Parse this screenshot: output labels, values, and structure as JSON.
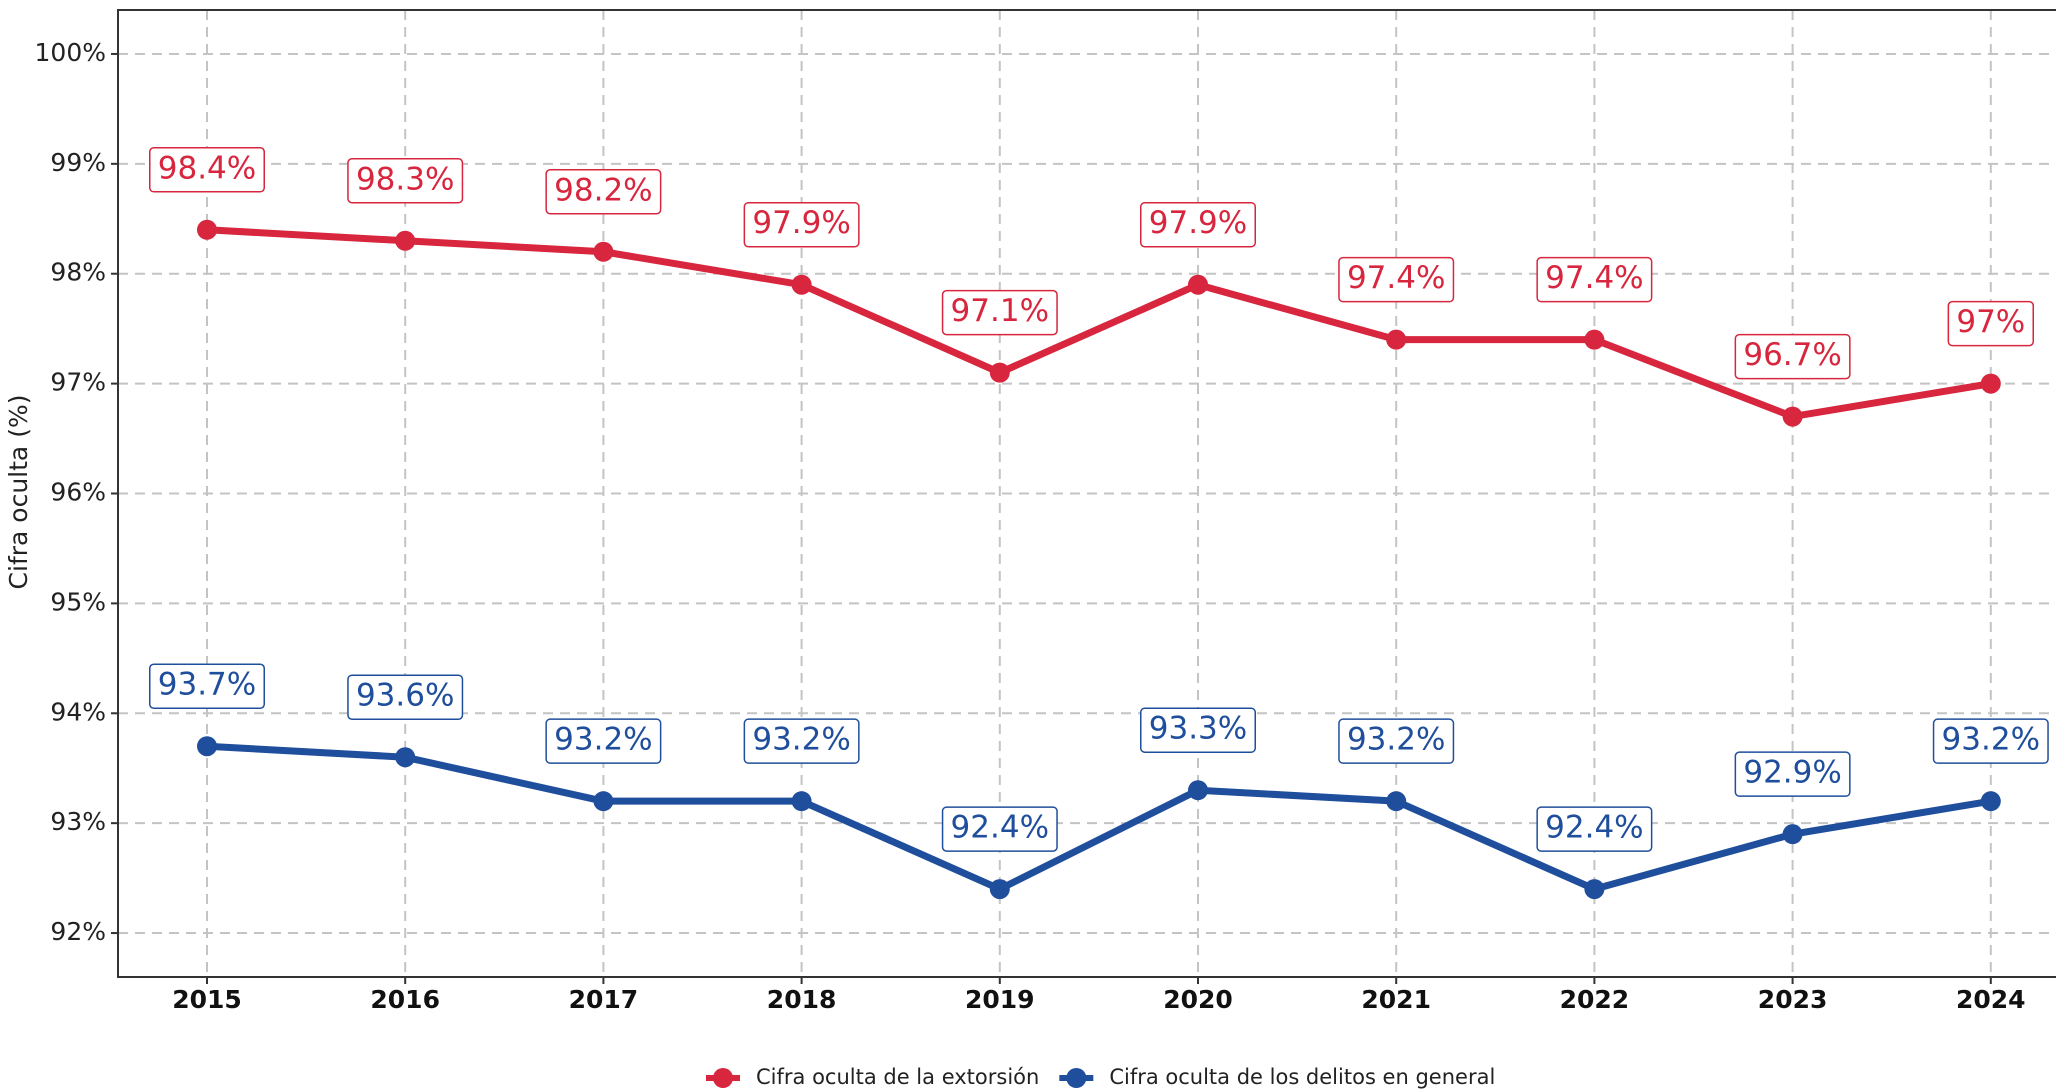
{
  "chart_data": {
    "type": "line",
    "y_label": "Cifra oculta (%)",
    "categories": [
      "2015",
      "2016",
      "2017",
      "2018",
      "2019",
      "2020",
      "2021",
      "2022",
      "2023",
      "2024"
    ],
    "series": [
      {
        "name": "Cifra oculta de la extorsión",
        "color": "#d7263d",
        "values": [
          98.4,
          98.3,
          98.2,
          97.9,
          97.1,
          97.9,
          97.4,
          97.4,
          96.7,
          97
        ],
        "value_labels": [
          "98.4%",
          "98.3%",
          "98.2%",
          "97.9%",
          "97.1%",
          "97.9%",
          "97.4%",
          "97.4%",
          "96.7%",
          "97%"
        ]
      },
      {
        "name": "Cifra oculta de los delitos en general",
        "color": "#1f4e9c",
        "values": [
          93.7,
          93.6,
          93.2,
          93.2,
          92.4,
          93.3,
          93.2,
          92.4,
          92.9,
          93.2
        ],
        "value_labels": [
          "93.7%",
          "93.6%",
          "93.2%",
          "93.2%",
          "92.4%",
          "93.3%",
          "93.2%",
          "92.4%",
          "92.9%",
          "93.2%"
        ]
      }
    ],
    "ylim": [
      91.6,
      100.4
    ],
    "yticks": [
      {
        "value": 92,
        "label": "92%"
      },
      {
        "value": 93,
        "label": "93%"
      },
      {
        "value": 94,
        "label": "94%"
      },
      {
        "value": 95,
        "label": "95%"
      },
      {
        "value": 96,
        "label": "96%"
      },
      {
        "value": 97,
        "label": "97%"
      },
      {
        "value": 98,
        "label": "98%"
      },
      {
        "value": 99,
        "label": "99%"
      },
      {
        "value": 100,
        "label": "100%"
      }
    ],
    "grid": true,
    "legend": "bottom"
  }
}
